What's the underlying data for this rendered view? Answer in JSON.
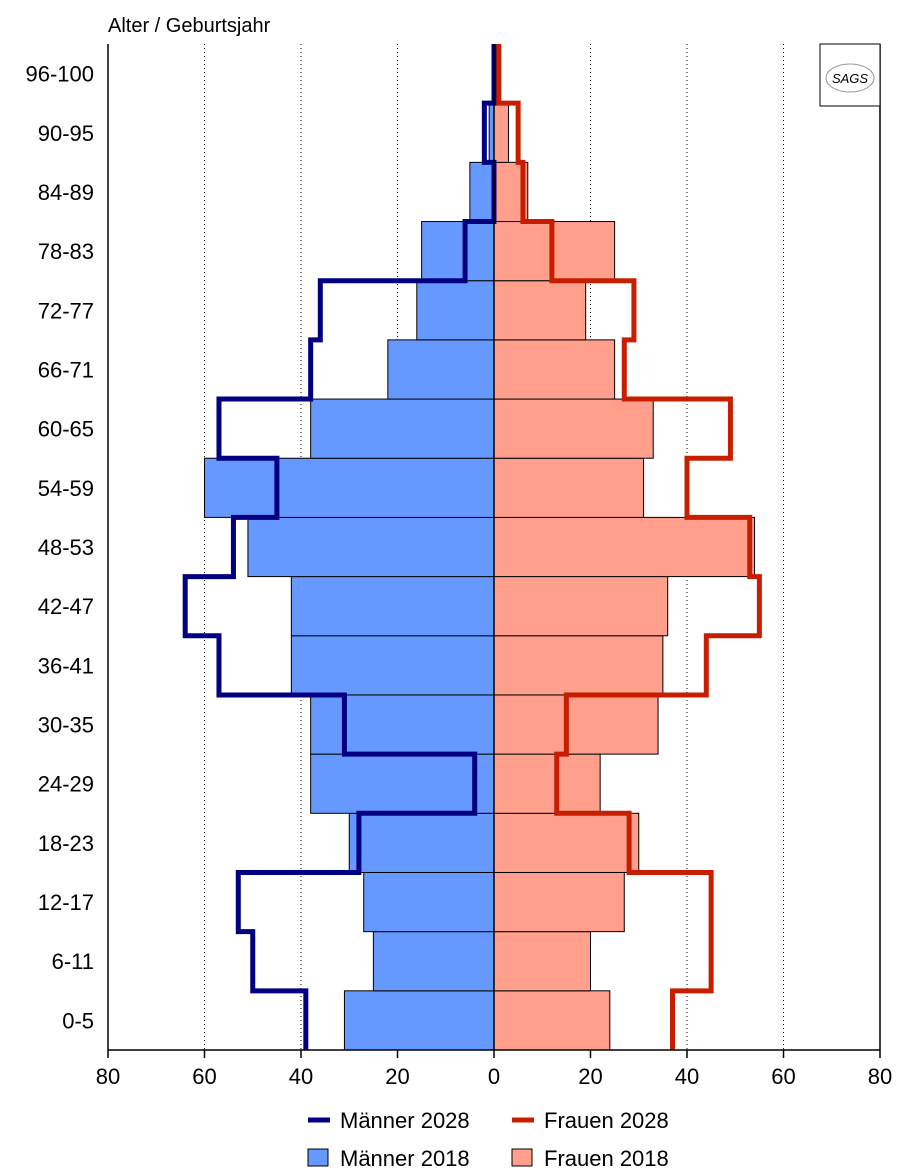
{
  "chart_data": {
    "type": "population-pyramid",
    "ylabel": "Alter / Geburtsjahr",
    "categories": [
      "0-5",
      "6-11",
      "12-17",
      "18-23",
      "24-29",
      "30-35",
      "36-41",
      "42-47",
      "48-53",
      "54-59",
      "60-65",
      "66-71",
      "72-77",
      "78-83",
      "84-89",
      "90-95",
      "96-100"
    ],
    "x_ticks": [
      "80",
      "60",
      "40",
      "20",
      "0",
      "20",
      "40",
      "60",
      "80"
    ],
    "xlim": [
      -80,
      80
    ],
    "grid": "vertical-dotted",
    "logo": "SAGS",
    "series": [
      {
        "name": "Männer 2018",
        "kind": "bar",
        "side": "left",
        "color": "#6699ff",
        "values": [
          31,
          25,
          27,
          30,
          38,
          38,
          42,
          42,
          51,
          60,
          38,
          22,
          16,
          15,
          5,
          1,
          0
        ]
      },
      {
        "name": "Frauen 2018",
        "kind": "bar",
        "side": "right",
        "color": "#ff9f8c",
        "values": [
          24,
          20,
          27,
          30,
          22,
          34,
          35,
          36,
          54,
          31,
          33,
          25,
          19,
          25,
          7,
          3,
          0
        ]
      },
      {
        "name": "Männer 2028",
        "kind": "step-line",
        "side": "left",
        "color": "#000080",
        "values": [
          39,
          50,
          53,
          28,
          4,
          31,
          57,
          64,
          54,
          45,
          57,
          38,
          36,
          6,
          0,
          2,
          0
        ]
      },
      {
        "name": "Frauen 2028",
        "kind": "step-line",
        "side": "right",
        "color": "#c81e00",
        "values": [
          37,
          45,
          45,
          28,
          13,
          15,
          44,
          55,
          53,
          40,
          49,
          27,
          29,
          12,
          6,
          5,
          1
        ]
      }
    ],
    "legend": {
      "placement": "bottom",
      "rows": [
        [
          "Männer 2028",
          "Frauen 2028"
        ],
        [
          "Männer 2018",
          "Frauen 2018"
        ]
      ]
    }
  }
}
